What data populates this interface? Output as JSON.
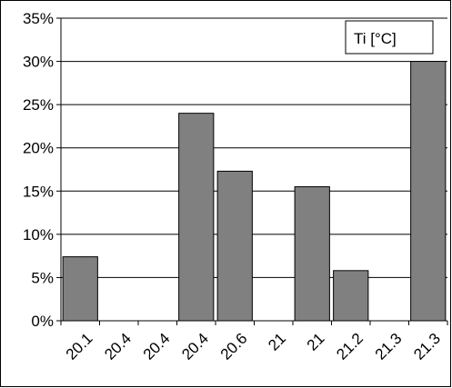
{
  "chart_data": {
    "type": "bar",
    "categories": [
      "20.1",
      "20.4",
      "20.4",
      "20.4",
      "20.6",
      "21",
      "21",
      "21.2",
      "21.3",
      "21.3"
    ],
    "values": [
      7.4,
      0,
      0,
      24.0,
      17.3,
      0,
      15.5,
      5.8,
      0,
      30.0
    ],
    "y_ticks": [
      "0%",
      "5%",
      "10%",
      "15%",
      "20%",
      "25%",
      "30%",
      "35%"
    ],
    "ylim": [
      0,
      35
    ],
    "y_step": 5,
    "legend": "Ti [°C]",
    "legend_position": "top-right",
    "grid": true,
    "bar_color": "#808080",
    "bar_edge_color": "#000000"
  }
}
